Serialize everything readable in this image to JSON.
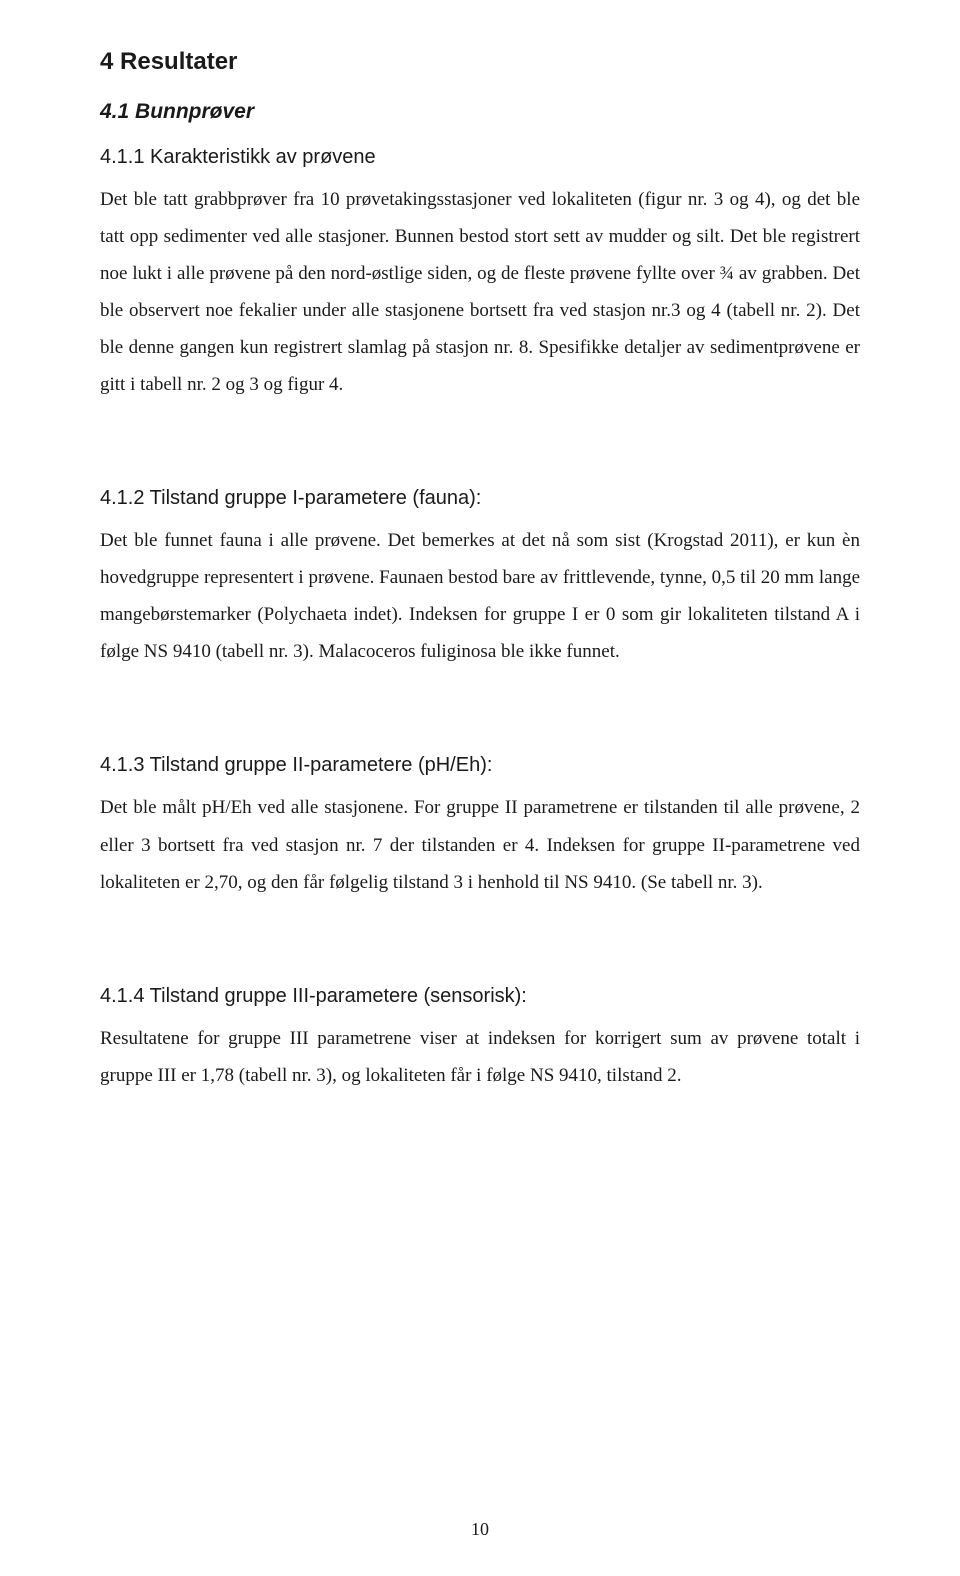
{
  "page": {
    "number": "10"
  },
  "h1": "4   Resultater",
  "s41": {
    "heading": "4.1   Bunnprøver",
    "s411": {
      "heading": "4.1.1  Karakteristikk av prøvene",
      "body": "Det ble tatt grabbprøver fra 10 prøvetakingsstasjoner ved lokaliteten (figur nr. 3 og 4), og det ble tatt opp sedimenter ved alle stasjoner. Bunnen bestod stort sett av mudder og silt. Det ble  registrert noe lukt i alle prøvene på den nord-østlige siden, og de fleste prøvene fyllte over  ¾  av grabben. Det ble observert noe fekalier under alle stasjonene bortsett fra ved stasjon nr.3 og 4 (tabell nr. 2). Det ble denne gangen kun registrert slamlag på stasjon nr. 8. Spesifikke detaljer av sedimentprøvene er gitt i tabell nr. 2 og 3 og figur 4."
    },
    "s412": {
      "heading": "4.1.2  Tilstand gruppe I-parametere (fauna):",
      "body": "Det ble funnet fauna i alle prøvene. Det bemerkes at det nå som sist (Krogstad 2011), er kun èn hovedgruppe  representert  i prøvene. Faunaen bestod bare av frittlevende, tynne, 0,5 til 20 mm lange mangebørstemarker (Polychaeta indet). Indeksen for gruppe I er 0 som gir lokaliteten tilstand A i følge NS 9410 (tabell nr. 3). Malacoceros fuliginosa ble ikke funnet."
    },
    "s413": {
      "heading": "4.1.3  Tilstand gruppe II-parametere (pH/Eh):",
      "body": "Det ble målt pH/Eh ved alle stasjonene. For gruppe II parametrene er tilstanden til alle prøvene, 2 eller 3 bortsett fra ved stasjon nr. 7 der tilstanden er 4. Indeksen for gruppe II-parametrene ved lokaliteten er 2,70, og den får følgelig tilstand 3 i henhold til NS 9410. (Se tabell nr. 3)."
    },
    "s414": {
      "heading": "4.1.4  Tilstand gruppe III-parametere (sensorisk):",
      "body": "Resultatene for gruppe III parametrene viser at indeksen for korrigert sum av prøvene totalt i gruppe III er 1,78 (tabell nr. 3), og lokaliteten får i følge NS 9410, tilstand 2."
    }
  }
}
